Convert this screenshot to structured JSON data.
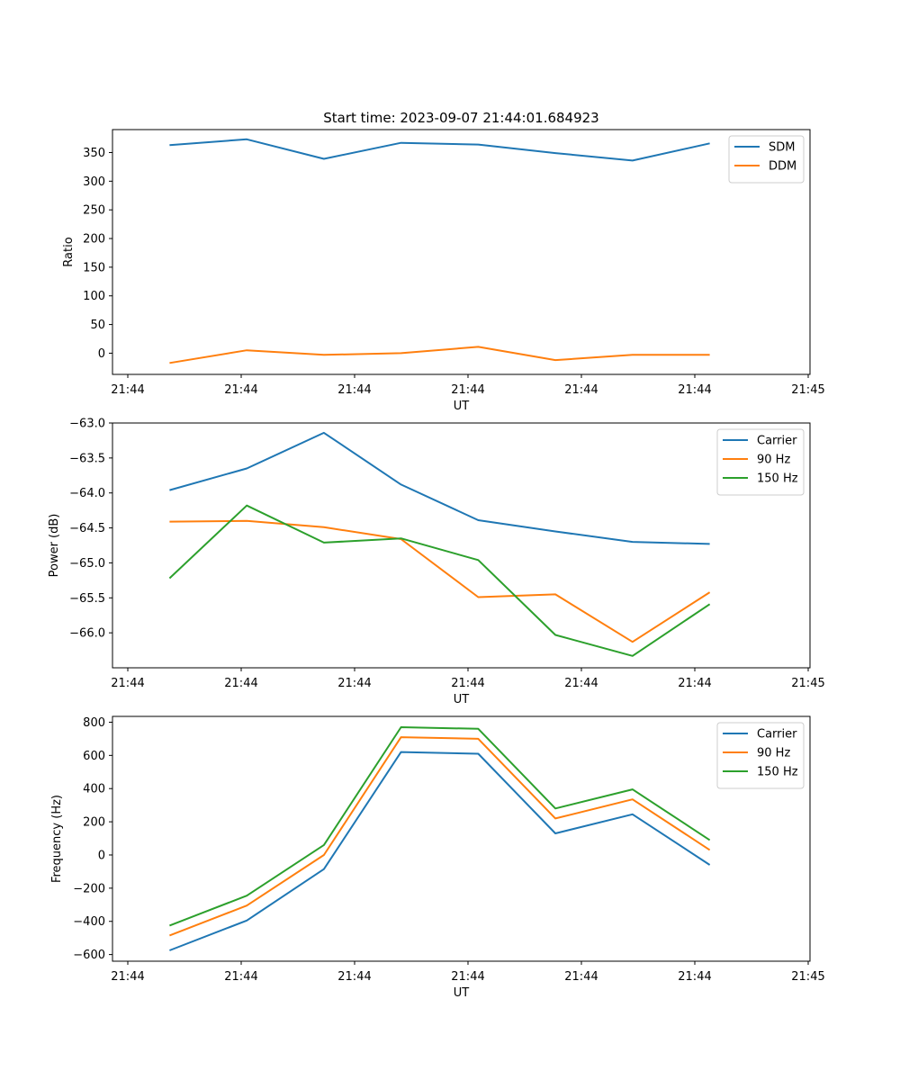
{
  "title": "Start time: 2023-09-07 21:44:01.684923",
  "chart_data": [
    {
      "type": "line",
      "xlabel": "UT",
      "ylabel": "Ratio",
      "xticks": [
        "21:44",
        "21:44",
        "21:44",
        "21:44",
        "21:44",
        "21:44",
        "21:45"
      ],
      "x": [
        1,
        2,
        3,
        4,
        5,
        6,
        7,
        8
      ],
      "xlim": [
        0.26,
        9.3
      ],
      "ylim": [
        -37,
        390
      ],
      "yticks": [
        0,
        50,
        100,
        150,
        200,
        250,
        300,
        350
      ],
      "legend_position": "top-right",
      "series": [
        {
          "name": "SDM",
          "color": "#1f77b4",
          "values": [
            363,
            373,
            339,
            367,
            364,
            349,
            336,
            366
          ]
        },
        {
          "name": "DDM",
          "color": "#ff7f0e",
          "values": [
            -17,
            5,
            -3,
            0,
            11,
            -12,
            -3,
            -3
          ]
        }
      ]
    },
    {
      "type": "line",
      "xlabel": "UT",
      "ylabel": "Power (dB)",
      "xticks": [
        "21:44",
        "21:44",
        "21:44",
        "21:44",
        "21:44",
        "21:44",
        "21:45"
      ],
      "x": [
        1,
        2,
        3,
        4,
        5,
        6,
        7,
        8
      ],
      "xlim": [
        0.26,
        9.3
      ],
      "ylim": [
        -66.5,
        -63.0
      ],
      "yticks": [
        -63.0,
        -63.5,
        -64.0,
        -64.5,
        -65.0,
        -65.5,
        -66.0
      ],
      "legend_position": "top-right",
      "series": [
        {
          "name": "Carrier",
          "color": "#1f77b4",
          "values": [
            -63.96,
            -63.65,
            -63.14,
            -63.88,
            -64.39,
            -64.55,
            -64.7,
            -64.73
          ]
        },
        {
          "name": "90 Hz",
          "color": "#ff7f0e",
          "values": [
            -64.41,
            -64.4,
            -64.49,
            -64.66,
            -65.49,
            -65.45,
            -66.13,
            -65.42
          ]
        },
        {
          "name": "150 Hz",
          "color": "#2ca02c",
          "values": [
            -65.22,
            -64.18,
            -64.71,
            -64.65,
            -64.96,
            -66.03,
            -66.33,
            -65.59
          ]
        }
      ]
    },
    {
      "type": "line",
      "xlabel": "UT",
      "ylabel": "Frequency (Hz)",
      "xticks": [
        "21:44",
        "21:44",
        "21:44",
        "21:44",
        "21:44",
        "21:44",
        "21:45"
      ],
      "x": [
        1,
        2,
        3,
        4,
        5,
        6,
        7,
        8
      ],
      "xlim": [
        0.26,
        9.3
      ],
      "ylim": [
        -640,
        835
      ],
      "yticks": [
        -600,
        -400,
        -200,
        0,
        200,
        400,
        600,
        800
      ],
      "legend_position": "top-right",
      "series": [
        {
          "name": "Carrier",
          "color": "#1f77b4",
          "values": [
            -575,
            -395,
            -85,
            620,
            610,
            130,
            245,
            -60
          ]
        },
        {
          "name": "90 Hz",
          "color": "#ff7f0e",
          "values": [
            -485,
            -305,
            0,
            710,
            700,
            220,
            335,
            30
          ]
        },
        {
          "name": "150 Hz",
          "color": "#2ca02c",
          "values": [
            -425,
            -245,
            60,
            770,
            760,
            280,
            395,
            90
          ]
        }
      ]
    }
  ]
}
